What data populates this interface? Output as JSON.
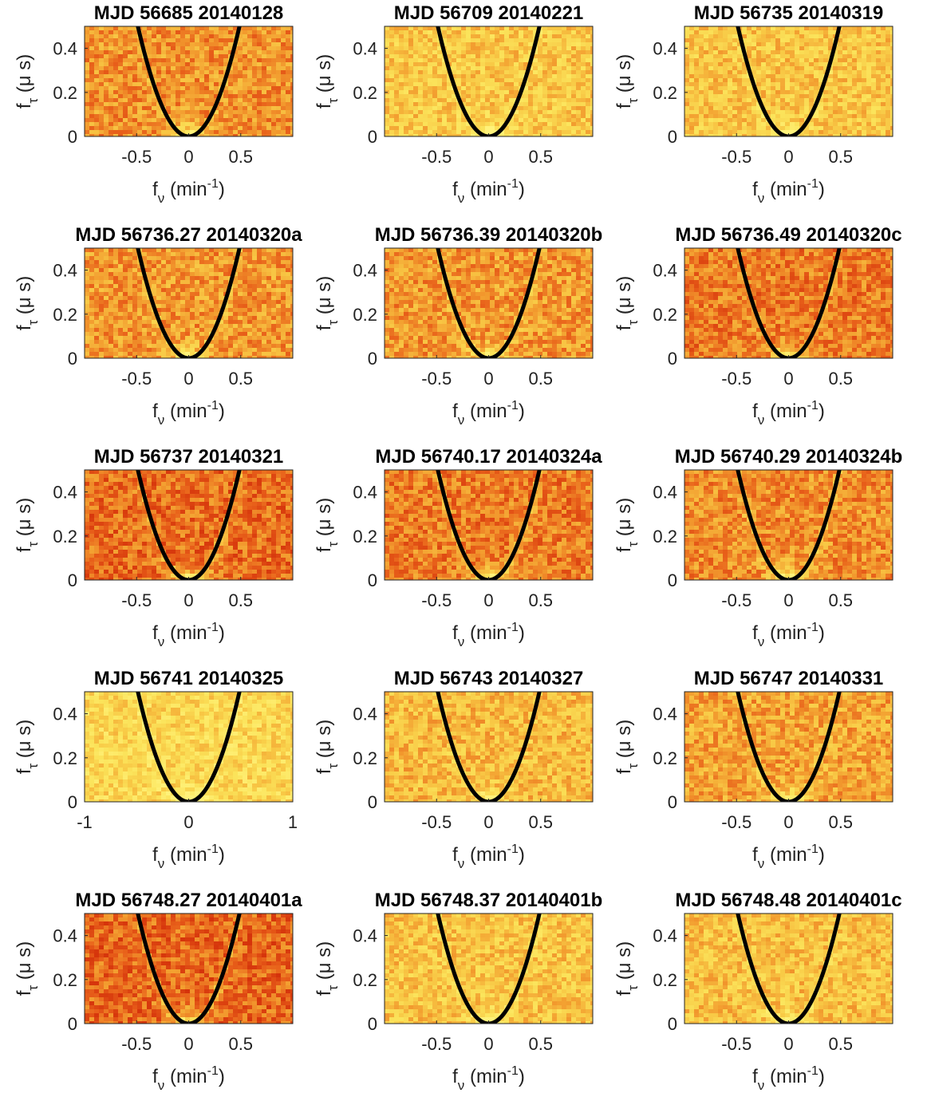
{
  "chart_data": {
    "type": "heatmap",
    "layout": {
      "rows": 5,
      "cols": 3
    },
    "axis_labels": {
      "x": {
        "main": "f",
        "sub": "ν",
        "unit_before": " (min",
        "unit_sup": "-1",
        "unit_after": ")"
      },
      "y": {
        "main": "f",
        "sub": "τ",
        "unit": " (μ s)"
      }
    },
    "colormap": [
      "#d4300a",
      "#e8601a",
      "#f29a2e",
      "#f8c845",
      "#fbe35a",
      "#fff27a"
    ],
    "curve": {
      "type": "parabola",
      "equation": "f_tau = a * f_nu^2",
      "color": "#000000"
    },
    "panels": [
      {
        "title": "MJD 56685 20140128",
        "xlim": [
          -1,
          1
        ],
        "ylim": [
          0,
          0.5
        ],
        "xticks": [
          -0.5,
          0,
          0.5
        ],
        "xtick_labels": [
          "-0.5",
          "0",
          "0.5"
        ],
        "yticks": [
          0,
          0.2,
          0.4
        ],
        "ytick_labels": [
          "0",
          "0.2",
          "0.4"
        ],
        "curvature": 2.1,
        "background_level": 0.38,
        "arc_brightness": 0.35
      },
      {
        "title": "MJD 56709 20140221",
        "xlim": [
          -1,
          1
        ],
        "ylim": [
          0,
          0.5
        ],
        "xticks": [
          -0.5,
          0,
          0.5
        ],
        "xtick_labels": [
          "-0.5",
          "0",
          "0.5"
        ],
        "yticks": [
          0,
          0.2,
          0.4
        ],
        "ytick_labels": [
          "0",
          "0.2",
          "0.4"
        ],
        "curvature": 2.1,
        "background_level": 0.62,
        "arc_brightness": 0.35
      },
      {
        "title": "MJD 56735 20140319",
        "xlim": [
          -1,
          1
        ],
        "ylim": [
          0,
          0.5
        ],
        "xticks": [
          -0.5,
          0,
          0.5
        ],
        "xtick_labels": [
          "-0.5",
          "0",
          "0.5"
        ],
        "yticks": [
          0,
          0.2,
          0.4
        ],
        "ytick_labels": [
          "0",
          "0.2",
          "0.4"
        ],
        "curvature": 2.1,
        "background_level": 0.6,
        "arc_brightness": 0.35
      },
      {
        "title": "MJD 56736.27 20140320a",
        "xlim": [
          -1,
          1
        ],
        "ylim": [
          0,
          0.5
        ],
        "xticks": [
          -0.5,
          0,
          0.5
        ],
        "xtick_labels": [
          "-0.5",
          "0",
          "0.5"
        ],
        "yticks": [
          0,
          0.2,
          0.4
        ],
        "ytick_labels": [
          "0",
          "0.2",
          "0.4"
        ],
        "curvature": 2.1,
        "background_level": 0.4,
        "arc_brightness": 0.45
      },
      {
        "title": "MJD 56736.39 20140320b",
        "xlim": [
          -1,
          1
        ],
        "ylim": [
          0,
          0.5
        ],
        "xticks": [
          -0.5,
          0,
          0.5
        ],
        "xtick_labels": [
          "-0.5",
          "0",
          "0.5"
        ],
        "yticks": [
          0,
          0.2,
          0.4
        ],
        "ytick_labels": [
          "0",
          "0.2",
          "0.4"
        ],
        "curvature": 2.1,
        "background_level": 0.4,
        "arc_brightness": 0.5
      },
      {
        "title": "MJD 56736.49 20140320c",
        "xlim": [
          -1,
          1
        ],
        "ylim": [
          0,
          0.5
        ],
        "xticks": [
          -0.5,
          0,
          0.5
        ],
        "xtick_labels": [
          "-0.5",
          "0",
          "0.5"
        ],
        "yticks": [
          0,
          0.2,
          0.4
        ],
        "ytick_labels": [
          "0",
          "0.2",
          "0.4"
        ],
        "curvature": 2.1,
        "background_level": 0.3,
        "arc_brightness": 0.5
      },
      {
        "title": "MJD 56737 20140321",
        "xlim": [
          -1,
          1
        ],
        "ylim": [
          0,
          0.5
        ],
        "xticks": [
          -0.5,
          0,
          0.5
        ],
        "xtick_labels": [
          "-0.5",
          "0",
          "0.5"
        ],
        "yticks": [
          0,
          0.2,
          0.4
        ],
        "ytick_labels": [
          "0",
          "0.2",
          "0.4"
        ],
        "curvature": 2.1,
        "background_level": 0.24,
        "arc_brightness": 0.6
      },
      {
        "title": "MJD 56740.17 20140324a",
        "xlim": [
          -1,
          1
        ],
        "ylim": [
          0,
          0.5
        ],
        "xticks": [
          -0.5,
          0,
          0.5
        ],
        "xtick_labels": [
          "-0.5",
          "0",
          "0.5"
        ],
        "yticks": [
          0,
          0.2,
          0.4
        ],
        "ytick_labels": [
          "0",
          "0.2",
          "0.4"
        ],
        "curvature": 2.1,
        "background_level": 0.3,
        "arc_brightness": 0.6
      },
      {
        "title": "MJD 56740.29 20140324b",
        "xlim": [
          -1,
          1
        ],
        "ylim": [
          0,
          0.5
        ],
        "xticks": [
          -0.5,
          0,
          0.5
        ],
        "xtick_labels": [
          "-0.5",
          "0",
          "0.5"
        ],
        "yticks": [
          0,
          0.2,
          0.4
        ],
        "ytick_labels": [
          "0",
          "0.2",
          "0.4"
        ],
        "curvature": 2.1,
        "background_level": 0.36,
        "arc_brightness": 0.55
      },
      {
        "title": "MJD 56741 20140325",
        "xlim": [
          -1,
          1
        ],
        "ylim": [
          0,
          0.5
        ],
        "xticks": [
          -1,
          0,
          1
        ],
        "xtick_labels": [
          "-1",
          "0",
          "1"
        ],
        "yticks": [
          0,
          0.2,
          0.4
        ],
        "ytick_labels": [
          "0",
          "0.2",
          "0.4"
        ],
        "curvature": 2.1,
        "background_level": 0.72,
        "arc_brightness": 0.4
      },
      {
        "title": "MJD 56743 20140327",
        "xlim": [
          -1,
          1
        ],
        "ylim": [
          0,
          0.5
        ],
        "xticks": [
          -0.5,
          0,
          0.5
        ],
        "xtick_labels": [
          "-0.5",
          "0",
          "0.5"
        ],
        "yticks": [
          0,
          0.2,
          0.4
        ],
        "ytick_labels": [
          "0",
          "0.2",
          "0.4"
        ],
        "curvature": 2.1,
        "background_level": 0.55,
        "arc_brightness": 0.3
      },
      {
        "title": "MJD 56747 20140331",
        "xlim": [
          -1,
          1
        ],
        "ylim": [
          0,
          0.5
        ],
        "xticks": [
          -0.5,
          0,
          0.5
        ],
        "xtick_labels": [
          "-0.5",
          "0",
          "0.5"
        ],
        "yticks": [
          0,
          0.2,
          0.4
        ],
        "ytick_labels": [
          "0",
          "0.2",
          "0.4"
        ],
        "curvature": 2.1,
        "background_level": 0.45,
        "arc_brightness": 0.4
      },
      {
        "title": "MJD 56748.27 20140401a",
        "xlim": [
          -1,
          1
        ],
        "ylim": [
          0,
          0.5
        ],
        "xticks": [
          -0.5,
          0,
          0.5
        ],
        "xtick_labels": [
          "-0.5",
          "0",
          "0.5"
        ],
        "yticks": [
          0,
          0.2,
          0.4
        ],
        "ytick_labels": [
          "0",
          "0.2",
          "0.4"
        ],
        "curvature": 2.1,
        "background_level": 0.22,
        "arc_brightness": 0.65
      },
      {
        "title": "MJD 56748.37 20140401b",
        "xlim": [
          -1,
          1
        ],
        "ylim": [
          0,
          0.5
        ],
        "xticks": [
          -0.5,
          0,
          0.5
        ],
        "xtick_labels": [
          "-0.5",
          "0",
          "0.5"
        ],
        "yticks": [
          0,
          0.2,
          0.4
        ],
        "ytick_labels": [
          "0",
          "0.2",
          "0.4"
        ],
        "curvature": 2.1,
        "background_level": 0.6,
        "arc_brightness": 0.4
      },
      {
        "title": "MJD 56748.48 20140401c",
        "xlim": [
          -1,
          1
        ],
        "ylim": [
          0,
          0.5
        ],
        "xticks": [
          -0.5,
          0,
          0.5
        ],
        "xtick_labels": [
          "-0.5",
          "0",
          "0.5"
        ],
        "yticks": [
          0,
          0.2,
          0.4
        ],
        "ytick_labels": [
          "0",
          "0.2",
          "0.4"
        ],
        "curvature": 2.1,
        "background_level": 0.58,
        "arc_brightness": 0.45
      }
    ]
  }
}
